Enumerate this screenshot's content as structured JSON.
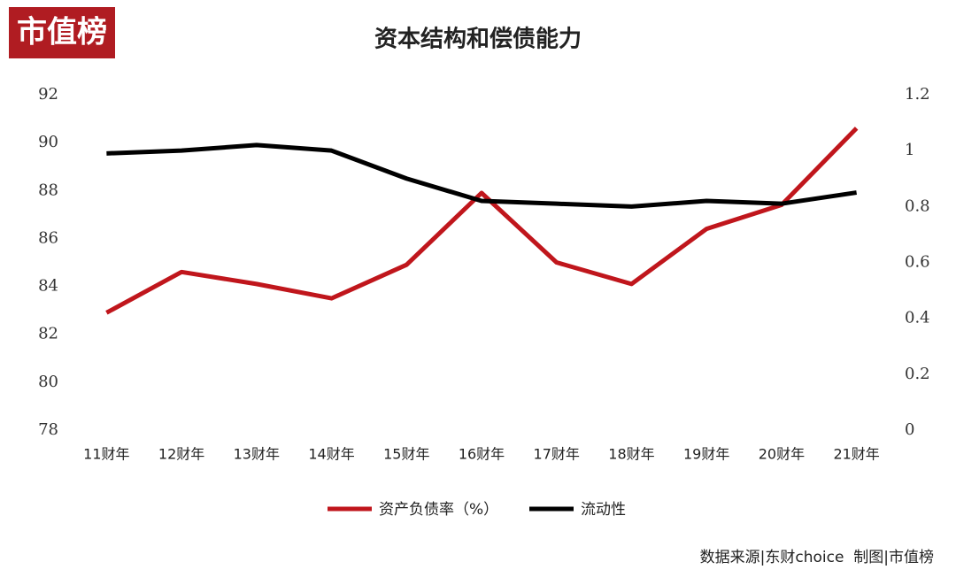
{
  "chart_data": {
    "type": "line",
    "logo": "市值榜",
    "title": "资本结构和偿债能力",
    "source_note": "数据来源|东财choice  制图|市值榜",
    "categories": [
      "11财年",
      "12财年",
      "13财年",
      "14财年",
      "15财年",
      "16财年",
      "17财年",
      "18财年",
      "19财年",
      "20财年",
      "21财年"
    ],
    "series": [
      {
        "name": "资产负债率（%）",
        "color": "#c0161c",
        "values": [
          82.9,
          84.6,
          84.1,
          83.5,
          84.9,
          87.9,
          85.0,
          84.1,
          86.4,
          87.4,
          90.6
        ]
      },
      {
        "name": "流动性",
        "color": "#000000",
        "axis": "y2",
        "values": [
          0.99,
          1.0,
          1.02,
          1.0,
          0.9,
          0.82,
          0.81,
          0.8,
          0.82,
          0.81,
          0.85
        ]
      }
    ],
    "ylim": [
      78,
      92
    ],
    "yticks": [
      78,
      80,
      82,
      84,
      86,
      88,
      90,
      92
    ],
    "y2lim": [
      0,
      1.2
    ],
    "y2ticks": [
      0,
      0.2,
      0.4,
      0.6,
      0.8,
      1,
      1.2
    ],
    "grid": false,
    "legend": "bottom"
  }
}
